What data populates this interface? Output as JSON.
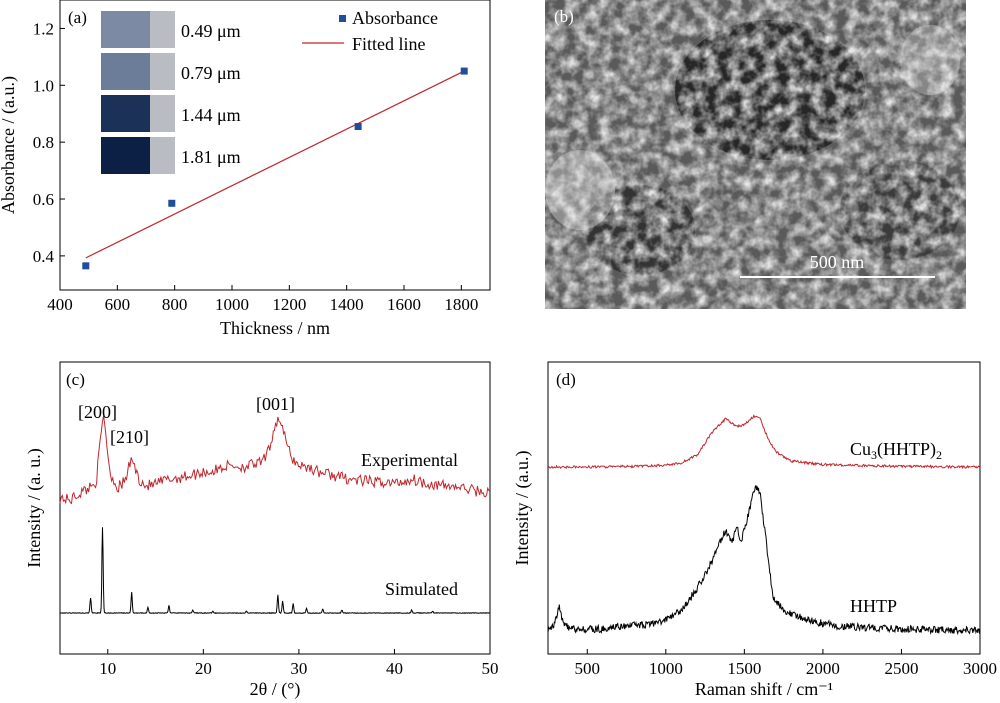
{
  "panels": {
    "a": {
      "label": "(a)",
      "legend": {
        "points": "Absorbance",
        "line": "Fitted line"
      },
      "thumbnails": [
        {
          "label": "0.49 μm",
          "color": "#7c8aa3"
        },
        {
          "label": "0.79 μm",
          "color": "#6b7d99"
        },
        {
          "label": "1.44 μm",
          "color": "#1b3157"
        },
        {
          "label": "1.81 μm",
          "color": "#0c1f45"
        }
      ]
    },
    "b": {
      "label": "(b)",
      "scale_bar": "500 nm"
    },
    "c": {
      "label": "(c)",
      "peaks": [
        "[200]",
        "[210]",
        "[001]"
      ],
      "series_labels": [
        "Experimental",
        "Simulated"
      ]
    },
    "d": {
      "label": "(d)",
      "series_labels": {
        "top_main": "Cu",
        "top_sub1": "3",
        "top_mid": "(HHTP)",
        "top_sub2": "2",
        "bottom": "HHTP"
      }
    }
  },
  "chart_data": [
    {
      "panel": "a",
      "type": "scatter",
      "xlabel": "Thickness / nm",
      "ylabel": "Absorbance / (a.u.)",
      "xlim": [
        400,
        1900
      ],
      "ylim": [
        0.28,
        1.3
      ],
      "xticks": [
        400,
        600,
        800,
        1000,
        1200,
        1400,
        1600,
        1800
      ],
      "yticks": [
        0.4,
        0.6,
        0.8,
        1.0,
        1.2
      ],
      "ytick_labels": [
        "0.4",
        "0.6",
        "0.8",
        "1.0",
        "1.2"
      ],
      "series": [
        {
          "name": "Absorbance",
          "x": [
            490,
            790,
            1440,
            1810
          ],
          "y": [
            0.365,
            0.585,
            0.855,
            1.05
          ],
          "color": "#1f4e9c"
        },
        {
          "name": "Fitted line",
          "x": [
            490,
            1810
          ],
          "y": [
            0.393,
            1.05
          ],
          "color": "#c0272d"
        }
      ]
    },
    {
      "panel": "c",
      "type": "line",
      "xlabel": "2θ / (°)",
      "ylabel": "Intensity / (a. u.)",
      "xlim": [
        5,
        50
      ],
      "xticks": [
        10,
        20,
        30,
        40,
        50
      ],
      "series": [
        {
          "name": "Experimental",
          "color": "#c0272d",
          "x": [
            5,
            6,
            7,
            8,
            8.8,
            9.3,
            9.6,
            10.2,
            11,
            11.8,
            12.5,
            13.2,
            14,
            15,
            16,
            17,
            18,
            19,
            20,
            21,
            22,
            23,
            24,
            25,
            26,
            26.8,
            27.5,
            28,
            28.5,
            29.2,
            30,
            31,
            32,
            33,
            34,
            35,
            36,
            37,
            38,
            39,
            40,
            41,
            42,
            43,
            44,
            45,
            46,
            47,
            48,
            49,
            50
          ],
          "y": [
            0.08,
            0.05,
            0.12,
            0.18,
            0.25,
            0.75,
            0.95,
            0.35,
            0.18,
            0.25,
            0.5,
            0.28,
            0.2,
            0.22,
            0.26,
            0.28,
            0.3,
            0.32,
            0.35,
            0.35,
            0.4,
            0.42,
            0.4,
            0.42,
            0.44,
            0.55,
            0.85,
            0.92,
            0.72,
            0.5,
            0.42,
            0.4,
            0.35,
            0.33,
            0.3,
            0.28,
            0.26,
            0.25,
            0.24,
            0.24,
            0.23,
            0.25,
            0.27,
            0.24,
            0.22,
            0.2,
            0.2,
            0.18,
            0.16,
            0.14,
            0.12
          ]
        },
        {
          "name": "Simulated",
          "color": "#000000",
          "x": [
            8.2,
            9.45,
            12.5,
            14.2,
            16.4,
            18.9,
            21,
            24.5,
            27.8,
            28.3,
            29.4,
            30.8,
            32.5,
            34.5,
            41.8,
            44
          ],
          "y": [
            0.16,
            0.9,
            0.22,
            0.06,
            0.08,
            0.03,
            0.02,
            0.02,
            0.19,
            0.13,
            0.1,
            0.05,
            0.04,
            0.03,
            0.03,
            0.02
          ]
        }
      ]
    },
    {
      "panel": "d",
      "type": "line",
      "xlabel": "Raman shift / cm⁻¹",
      "ylabel": "Intensity / (a.u.)",
      "xlim": [
        250,
        3000
      ],
      "xticks": [
        500,
        1000,
        1500,
        2000,
        2500,
        3000
      ],
      "series": [
        {
          "name": "Cu3(HHTP)2",
          "color": "#c0272d",
          "x": [
            250,
            500,
            800,
            1000,
            1100,
            1200,
            1300,
            1380,
            1450,
            1500,
            1560,
            1600,
            1650,
            1700,
            1800,
            2000,
            2500,
            3000
          ],
          "y": [
            0.0,
            0.0,
            0.01,
            0.03,
            0.07,
            0.2,
            0.6,
            0.8,
            0.68,
            0.7,
            0.85,
            0.8,
            0.48,
            0.25,
            0.1,
            0.04,
            0.01,
            0.0
          ]
        },
        {
          "name": "HHTP",
          "color": "#000000",
          "x": [
            250,
            290,
            320,
            350,
            400,
            600,
            700,
            900,
            1000,
            1100,
            1200,
            1280,
            1340,
            1380,
            1420,
            1450,
            1480,
            1520,
            1570,
            1600,
            1630,
            1680,
            1750,
            1900,
            2100,
            2500,
            3000
          ],
          "y": [
            0.02,
            0.05,
            0.18,
            0.05,
            0.02,
            0.02,
            0.04,
            0.05,
            0.08,
            0.15,
            0.3,
            0.45,
            0.6,
            0.7,
            0.6,
            0.72,
            0.62,
            0.78,
            1.0,
            0.95,
            0.7,
            0.25,
            0.15,
            0.08,
            0.04,
            0.02,
            0.01
          ]
        }
      ]
    }
  ]
}
